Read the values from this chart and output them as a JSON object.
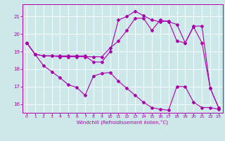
{
  "xlabel": "Windchill (Refroidissement éolien,°C)",
  "bg_color": "#cce8e8",
  "line_color": "#aa00aa",
  "grid_color": "#ffffff",
  "xlim": [
    -0.5,
    23.5
  ],
  "ylim": [
    15.5,
    21.7
  ],
  "yticks": [
    16,
    17,
    18,
    19,
    20,
    21
  ],
  "xticks": [
    0,
    1,
    2,
    3,
    4,
    5,
    6,
    7,
    8,
    9,
    10,
    11,
    12,
    13,
    14,
    15,
    16,
    17,
    18,
    19,
    20,
    21,
    22,
    23
  ],
  "line1_x": [
    0,
    1,
    2,
    3,
    4,
    5,
    6,
    7,
    8,
    9,
    10,
    11,
    12,
    13,
    14,
    15,
    16,
    17,
    18,
    19,
    20,
    21,
    22,
    23
  ],
  "line1_y": [
    19.5,
    18.85,
    18.75,
    18.75,
    18.75,
    18.75,
    18.75,
    18.75,
    18.4,
    18.4,
    19.0,
    20.8,
    21.0,
    21.3,
    21.05,
    20.8,
    20.7,
    20.75,
    19.6,
    19.5,
    20.4,
    19.5,
    16.9,
    15.8
  ],
  "line2_x": [
    0,
    1,
    2,
    3,
    4,
    5,
    6,
    7,
    8,
    9,
    10,
    11,
    12,
    13,
    14,
    15,
    16,
    17,
    18,
    19,
    20,
    21,
    22,
    23
  ],
  "line2_y": [
    19.5,
    18.85,
    18.75,
    18.75,
    18.7,
    18.7,
    18.7,
    18.7,
    18.7,
    18.7,
    19.2,
    19.6,
    20.2,
    20.9,
    20.9,
    20.2,
    20.8,
    20.7,
    20.55,
    19.5,
    20.45,
    20.45,
    16.9,
    15.8
  ],
  "line3_x": [
    0,
    1,
    2,
    3,
    4,
    5,
    6,
    7,
    8,
    9,
    10,
    11,
    12,
    13,
    14,
    15,
    16,
    17,
    18,
    19,
    20,
    21,
    22,
    23
  ],
  "line3_y": [
    19.5,
    18.85,
    18.2,
    17.85,
    17.5,
    17.1,
    16.95,
    16.5,
    17.6,
    17.75,
    17.8,
    17.3,
    16.9,
    16.5,
    16.1,
    15.8,
    15.7,
    15.65,
    17.0,
    17.0,
    16.1,
    15.8,
    15.8,
    15.7
  ]
}
